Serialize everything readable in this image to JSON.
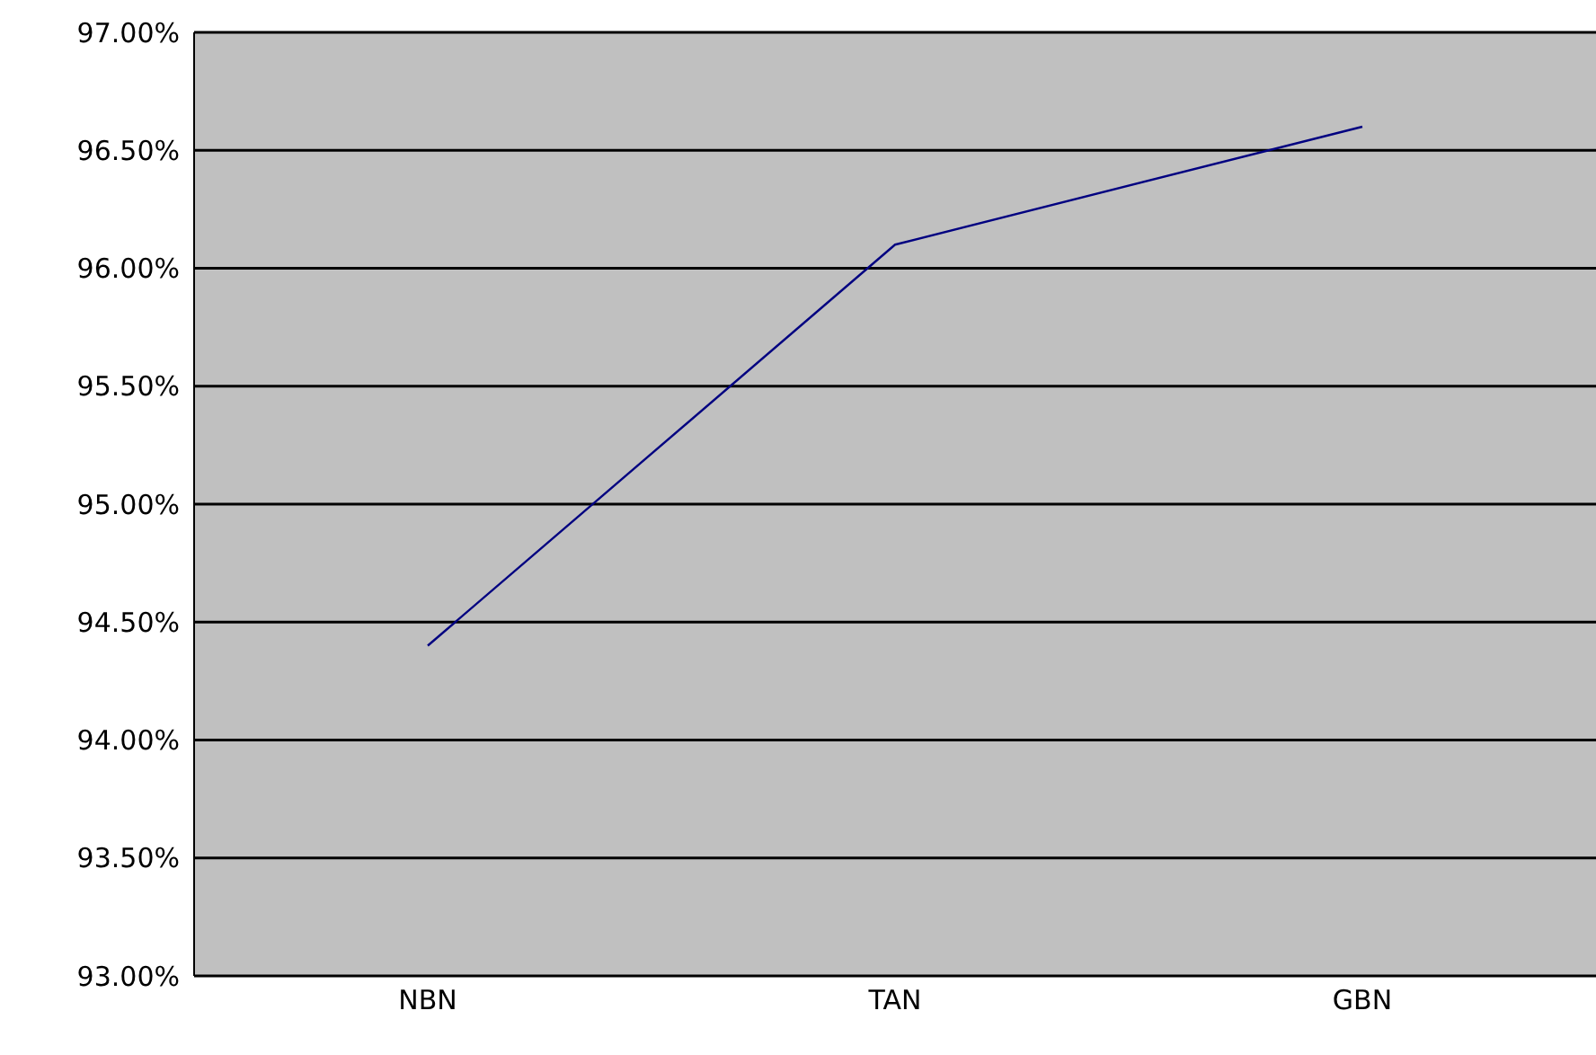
{
  "chart_data": {
    "type": "line",
    "categories": [
      "NBN",
      "TAN",
      "GBN"
    ],
    "series": [
      {
        "color": "#000080",
        "values": [
          94.4,
          96.1,
          96.6
        ]
      }
    ],
    "ylim": [
      93,
      97
    ],
    "yticks": [
      {
        "value": 93,
        "label": "93.00%"
      },
      {
        "value": 93.5,
        "label": "93.50%"
      },
      {
        "value": 94,
        "label": "94.00%"
      },
      {
        "value": 94.5,
        "label": "94.50%"
      },
      {
        "value": 95,
        "label": "95.00%"
      },
      {
        "value": 95.5,
        "label": "95.50%"
      },
      {
        "value": 96,
        "label": "96.00%"
      },
      {
        "value": 96.5,
        "label": "96.50%"
      },
      {
        "value": 97,
        "label": "97.00%"
      }
    ],
    "grid": "y",
    "marker": "none",
    "line_style": "solid"
  }
}
